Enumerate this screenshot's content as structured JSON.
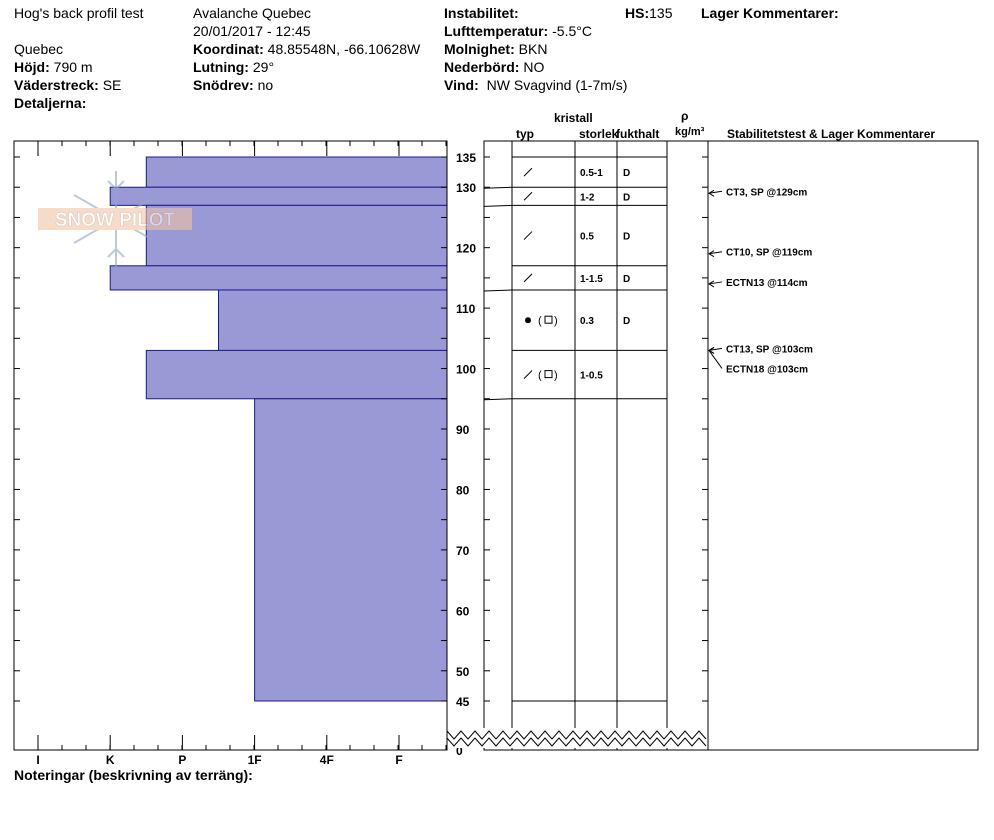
{
  "header": {
    "title": "Hog's back profil test",
    "location": "Quebec",
    "elevation_label": "Höjd:",
    "elevation_value": "790 m",
    "aspect_label": "Väderstreck:",
    "aspect_value": "SE",
    "details_label": "Detaljerna:",
    "organization": "Avalanche Quebec",
    "datetime": "20/01/2017 - 12:45",
    "coord_label": "Koordinat:",
    "coord_value": "48.85548N, -66.10628W",
    "slope_label": "Lutning:",
    "slope_value": "29°",
    "wind_loading_label": "Snödrev:",
    "wind_loading_value": "no",
    "instability_label": "Instabilitet:",
    "air_temp_label": "Lufttemperatur:",
    "air_temp_value": "-5.5°C",
    "sky_label": "Molnighet:",
    "sky_value": "BKN",
    "precip_label": "Nederbörd:",
    "precip_value": "NO",
    "wind_label": "Vind:",
    "wind_value": "NW Svagvind (1-7m/s)",
    "hs_label": "HS:",
    "hs_value": "135",
    "layer_comments_label": "Lager Kommentarer:"
  },
  "columns": {
    "crystal": "kristall",
    "type": "typ",
    "size": "storlek",
    "moisture": "fukthalt",
    "rho": "ρ",
    "density_unit": "kg/m³",
    "stability": "Stabilitetstest & Lager Kommentarer"
  },
  "footer": {
    "notes_label": "Noteringar (beskrivning av terräng):"
  },
  "logo_text": "SNOW PILOT",
  "chart_data": {
    "type": "bar",
    "hardness_scale": [
      "I",
      "K",
      "P",
      "1F",
      "4F",
      "F"
    ],
    "height_ticks": [
      135,
      130,
      120,
      110,
      100,
      90,
      80,
      70,
      60,
      50,
      45,
      0
    ],
    "layers": [
      {
        "top": 135,
        "bottom": 130,
        "hardness": 1.5,
        "size": "0.5-1",
        "moisture": "D",
        "grain": "slash",
        "secondary": false
      },
      {
        "top": 130,
        "bottom": 127,
        "hardness": 1.0,
        "size": "1-2",
        "moisture": "D",
        "grain": "slash",
        "secondary": false
      },
      {
        "top": 127,
        "bottom": 117,
        "hardness": 1.5,
        "size": "0.5",
        "moisture": "D",
        "grain": "slash",
        "secondary": false
      },
      {
        "top": 117,
        "bottom": 113,
        "hardness": 1.0,
        "size": "1-1.5",
        "moisture": "D",
        "grain": "slash",
        "secondary": false
      },
      {
        "top": 113,
        "bottom": 103,
        "hardness": 2.5,
        "size": "0.3",
        "moisture": "D",
        "grain": "dot",
        "secondary": true
      },
      {
        "top": 103,
        "bottom": 95,
        "hardness": 1.5,
        "size": "1-0.5",
        "moisture": "",
        "grain": "slash",
        "secondary": true
      },
      {
        "top": 95,
        "bottom": 45,
        "hardness": 3.0,
        "size": "",
        "moisture": "",
        "grain": "",
        "secondary": false
      }
    ],
    "tests": [
      {
        "height": 129,
        "label": "CT3, SP @129cm"
      },
      {
        "height": 119,
        "label": "CT10, SP @119cm"
      },
      {
        "height": 114,
        "label": "ECTN13 @114cm"
      },
      {
        "height": 103,
        "label": "CT13, SP @103cm"
      },
      {
        "height": 103,
        "label": "ECTN18 @103cm"
      }
    ]
  }
}
